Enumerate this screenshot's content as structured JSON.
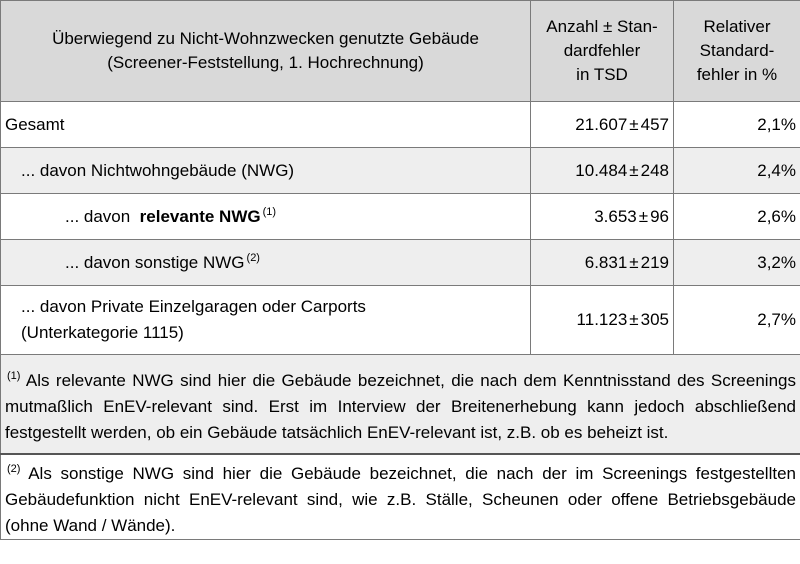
{
  "table": {
    "header": {
      "col1_line1": "Überwiegend zu Nicht-Wohnzwecken genutzte Gebäude",
      "col1_line2": "(Screener-Feststellung, 1. Hochrechnung)",
      "col2_line1": "Anzahl ± Stan-",
      "col2_line2": "dardfehler",
      "col2_line3": "in TSD",
      "col3_line1": "Relativer",
      "col3_line2": "Standard-",
      "col3_line3": "fehler in %"
    },
    "rows": [
      {
        "label": "Gesamt",
        "value": "21.607",
        "error": "457",
        "rel": "2,1%"
      },
      {
        "label": "... davon Nichtwohngebäude (NWG)",
        "value": "10.484",
        "error": "248",
        "rel": "2,4%"
      },
      {
        "label_prefix": "... davon",
        "label_bold": "relevante NWG",
        "sup": "(1)",
        "value": "3.653",
        "error": "96",
        "rel": "2,6%"
      },
      {
        "label": "... davon sonstige NWG",
        "sup": "(2)",
        "value": "6.831",
        "error": "219",
        "rel": "3,2%"
      },
      {
        "label_line1": "... davon Private Einzelgaragen oder Carports",
        "label_line2": "(Unterkategorie 1115)",
        "value": "11.123",
        "error": "305",
        "rel": "2,7%"
      }
    ],
    "pm_symbol": "±",
    "footnotes": [
      {
        "mark": "(1)",
        "text": "Als relevante NWG sind hier die Gebäude bezeichnet, die nach dem Kenntnisstand des Screenings mutmaßlich EnEV-relevant sind. Erst im Interview der Breitenerhebung kann jedoch abschließend festgestellt werden, ob ein Gebäude tatsächlich EnEV-relevant ist, z.B. ob es beheizt ist."
      },
      {
        "mark": "(2)",
        "text": "Als sonstige NWG sind hier die Gebäude bezeichnet, die nach der im Screenings festgestellten Gebäudefunktion nicht EnEV-relevant sind, wie z.B. Ställe, Scheunen oder offene Betriebsgebäude (ohne Wand / Wände)."
      }
    ]
  }
}
